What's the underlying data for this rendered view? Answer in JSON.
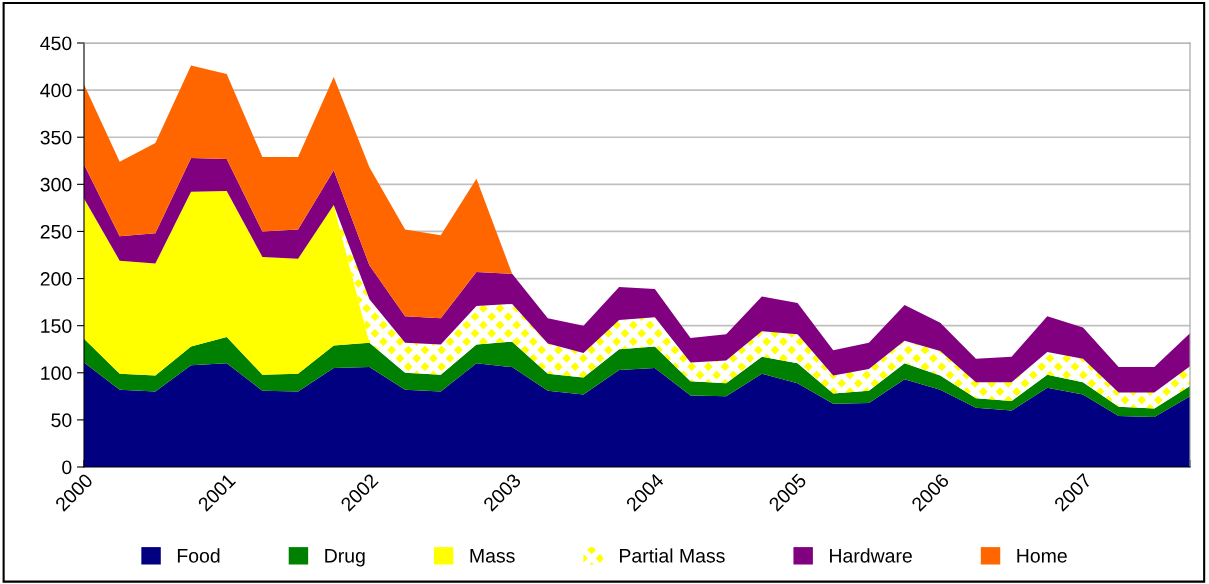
{
  "chart_data": {
    "type": "area",
    "stacked": true,
    "categories": [
      "2000",
      null,
      null,
      null,
      "2001",
      null,
      null,
      null,
      "2002",
      null,
      null,
      null,
      "2003",
      null,
      null,
      null,
      "2004",
      null,
      null,
      null,
      "2005",
      null,
      null,
      null,
      "2006",
      null,
      null,
      null,
      "2007",
      null,
      null,
      null
    ],
    "series": [
      {
        "name": "Food",
        "color": "#000080",
        "values": [
          111,
          82,
          80,
          108,
          110,
          81,
          80,
          105,
          106,
          82,
          80,
          110,
          106,
          81,
          77,
          103,
          105,
          76,
          75,
          99,
          89,
          67,
          68,
          93,
          82,
          63,
          60,
          84,
          77,
          54,
          53,
          75
        ]
      },
      {
        "name": "Drug",
        "color": "#008000",
        "values": [
          25,
          17,
          17,
          20,
          28,
          17,
          19,
          24,
          26,
          18,
          18,
          20,
          27,
          18,
          18,
          22,
          23,
          15,
          14,
          18,
          21,
          11,
          13,
          17,
          15,
          10,
          10,
          14,
          13,
          10,
          9,
          11
        ]
      },
      {
        "name": "Mass",
        "color": "#ffff00",
        "values": [
          149,
          120,
          119,
          164,
          155,
          125,
          122,
          149,
          0,
          null,
          null,
          null,
          null,
          null,
          null,
          null,
          null,
          null,
          null,
          null,
          null,
          null,
          null,
          null,
          null,
          null,
          null,
          null,
          null,
          null,
          null,
          null
        ]
      },
      {
        "name": "Partial Mass",
        "color": "#ffff00",
        "values": [
          null,
          null,
          null,
          null,
          null,
          null,
          null,
          0,
          46,
          32,
          32,
          41,
          40,
          32,
          26,
          31,
          31,
          20,
          24,
          27,
          31,
          19,
          23,
          24,
          26,
          17,
          20,
          24,
          25,
          15,
          17,
          21
        ]
      },
      {
        "name": "Hardware",
        "color": "#800080",
        "values": [
          36,
          26,
          32,
          36,
          34,
          27,
          31,
          37,
          36,
          28,
          28,
          36,
          32,
          27,
          29,
          35,
          30,
          26,
          28,
          37,
          33,
          27,
          28,
          38,
          30,
          25,
          27,
          38,
          33,
          27,
          27,
          35
        ]
      },
      {
        "name": "Home",
        "color": "#ff6600",
        "values": [
          85,
          79,
          96,
          98,
          90,
          79,
          77,
          99,
          104,
          92,
          88,
          99,
          0,
          null,
          null,
          null,
          null,
          null,
          null,
          null,
          null,
          null,
          null,
          null,
          null,
          null,
          null,
          null,
          null,
          null,
          null,
          null
        ]
      }
    ],
    "ylim": [
      0,
      450
    ],
    "yticks": [
      0,
      50,
      100,
      150,
      200,
      250,
      300,
      350,
      400,
      450
    ],
    "grid": "y",
    "legend": "bottom"
  }
}
